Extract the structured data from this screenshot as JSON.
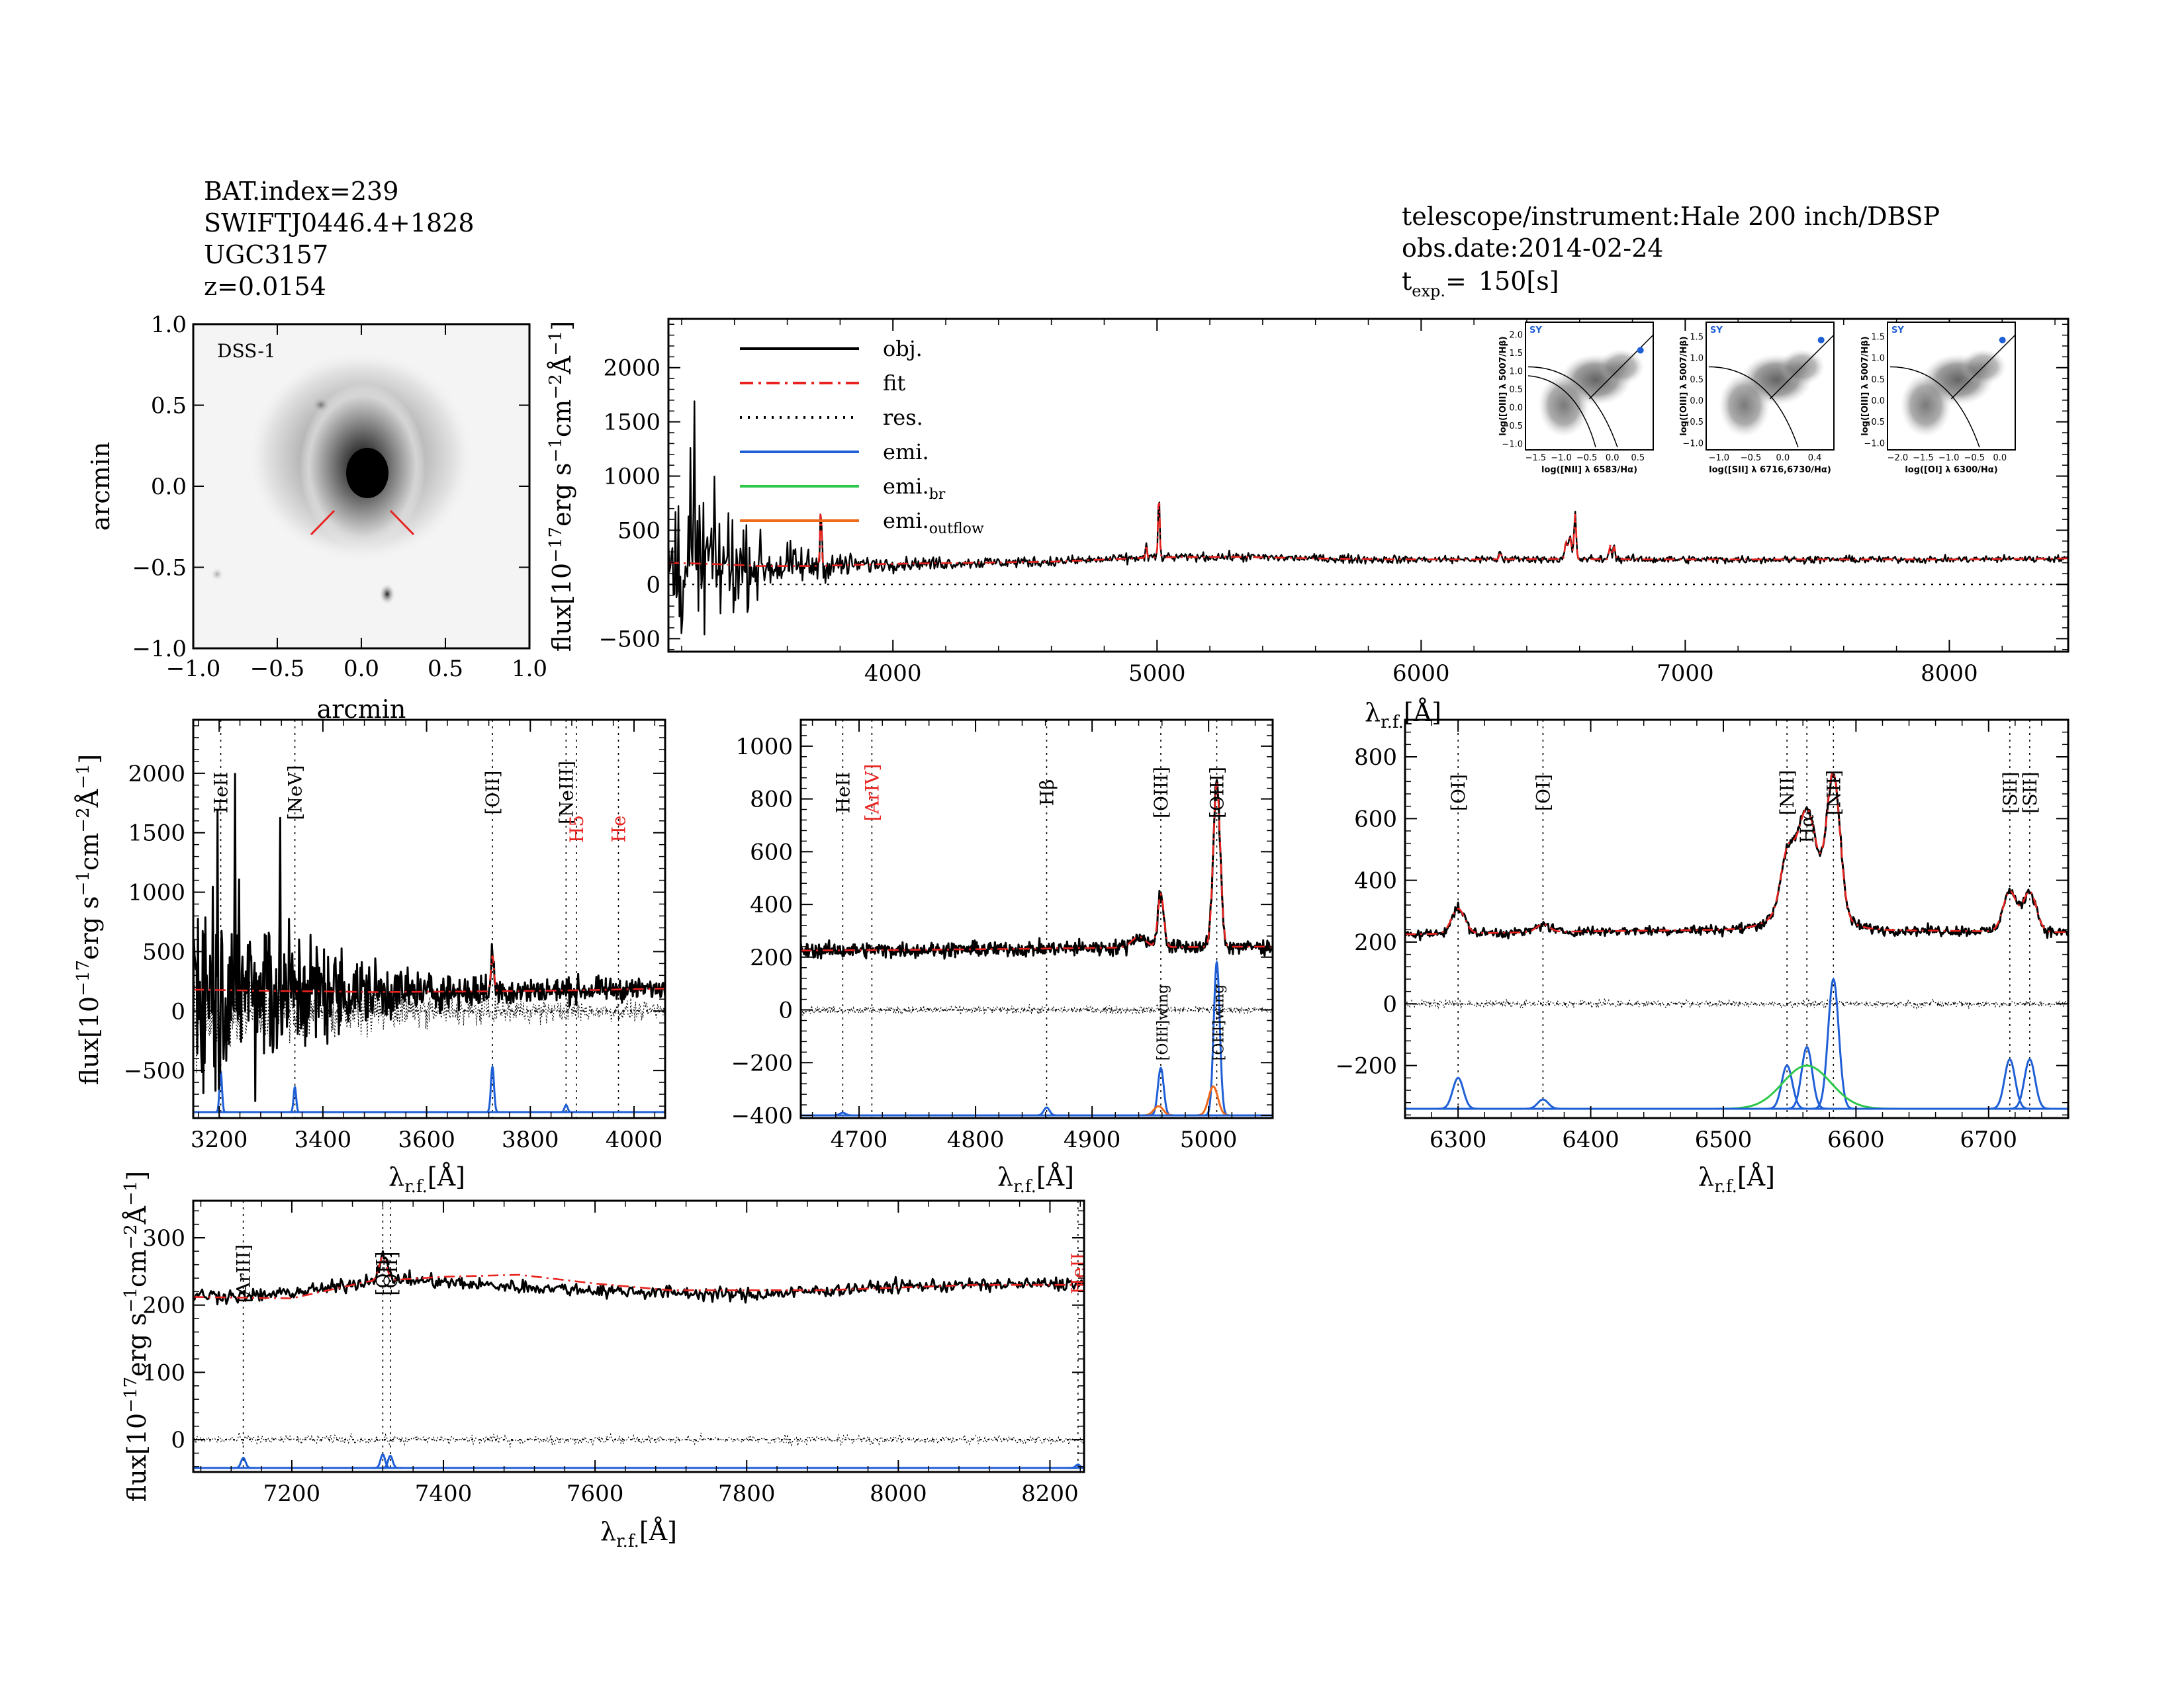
{
  "header": {
    "left": [
      "BAT.index=239",
      "SWIFTJ0446.4+1828",
      "UGC3157",
      "z=0.0154"
    ],
    "right": [
      "telescope/instrument:Hale 200 inch/DBSP",
      "obs.date:2014-02-24",
      "150[s]"
    ],
    "texp_label": "t",
    "texp_sub": "exp.",
    "texp_eq": "="
  },
  "colors": {
    "obj": "#000000",
    "fit": "#e8231f",
    "res": "#000000",
    "emi": "#1f5fd6",
    "emi_br": "#2ec84a",
    "emi_outflow": "#f06a1c",
    "red_label": "#e8231f",
    "bpt_sy": "#1f5fd6"
  },
  "image": {
    "label": "DSS-1",
    "xlabel": "arcmin",
    "ylabel": "arcmin",
    "xlim": [
      -1.0,
      1.0
    ],
    "ylim": [
      -1.0,
      1.0
    ],
    "xticks": [
      "-1.0",
      "-0.5",
      "0.0",
      "0.5",
      "1.0"
    ],
    "yticks": [
      "-1.0",
      "-0.5",
      "0.0",
      "0.5",
      "1.0"
    ],
    "marker_color": "#e8231f"
  },
  "labels": {
    "ylabel": "flux[10-17erg s-1cm-2Å-1]",
    "xlabel": "λr.f.[Å]"
  },
  "legend": [
    {
      "label": "obj.",
      "key": "obj",
      "style": "solid"
    },
    {
      "label": "fit",
      "key": "fit",
      "style": "dashdot"
    },
    {
      "label": "res.",
      "key": "res",
      "style": "dotted"
    },
    {
      "label": "emi.",
      "key": "emi",
      "style": "solid"
    },
    {
      "label": "emi.br",
      "key": "emi_br",
      "style": "solid"
    },
    {
      "label": "emi.outflow",
      "key": "emi_outflow",
      "style": "solid"
    }
  ],
  "bpt": [
    {
      "xlabel": "log([NII] λ 6583/Hα)",
      "ylabel": "log([OIII] λ 5007/Hβ)",
      "xticks": [
        "-1.5",
        "-1.0",
        "-0.5",
        "0.0",
        "0.5"
      ],
      "yticks": [
        "-1.0",
        "-0.5",
        "0.0",
        "0.5",
        "1.0",
        "1.5",
        "2.0"
      ],
      "tag": "SY"
    },
    {
      "xlabel": "log([SII] λ 6716,6730/Hα)",
      "ylabel": "log([OIII] λ 5007/Hβ)",
      "xticks": [
        "-1.0",
        "-0.5",
        "0.0",
        "0.4"
      ],
      "yticks": [
        "-1.0",
        "-0.5",
        "0.0",
        "0.5",
        "1.0",
        "1.5"
      ],
      "tag": "SY"
    },
    {
      "xlabel": "log([OI] λ 6300/Hα)",
      "ylabel": "log([OIII] λ 5007/Hβ)",
      "xticks": [
        "-2.0",
        "-1.5",
        "-1.0",
        "-0.5",
        "0.0"
      ],
      "yticks": [
        "-1.0",
        "-0.5",
        "0.0",
        "0.5",
        "1.0",
        "1.5"
      ],
      "tag": "SY"
    }
  ],
  "chart_data": [
    {
      "id": "main",
      "type": "line",
      "title": "",
      "xlim": [
        3150,
        8450
      ],
      "ylim": [
        -620,
        2450
      ],
      "xticks": [
        4000,
        5000,
        6000,
        7000,
        8000
      ],
      "yticks": [
        -500,
        0,
        500,
        1000,
        1500,
        2000
      ],
      "continuum": [
        [
          3150,
          200
        ],
        [
          3300,
          190
        ],
        [
          3500,
          170
        ],
        [
          3700,
          170
        ],
        [
          4000,
          190
        ],
        [
          4300,
          200
        ],
        [
          4600,
          210
        ],
        [
          4800,
          230
        ],
        [
          5000,
          250
        ],
        [
          5300,
          255
        ],
        [
          5600,
          240
        ],
        [
          5900,
          230
        ],
        [
          6200,
          230
        ],
        [
          6500,
          235
        ],
        [
          7000,
          230
        ],
        [
          7500,
          230
        ],
        [
          8000,
          230
        ],
        [
          8450,
          240
        ]
      ],
      "emission": [
        [
          3727,
          550,
          3
        ],
        [
          4959,
          120,
          3
        ],
        [
          5007,
          600,
          3
        ],
        [
          6300,
          70,
          4
        ],
        [
          6548,
          150,
          4
        ],
        [
          6563,
          200,
          6
        ],
        [
          6583,
          420,
          4
        ],
        [
          6716,
          130,
          4
        ],
        [
          6731,
          120,
          4
        ]
      ],
      "noise": [
        [
          3150,
          380
        ],
        [
          3300,
          300
        ],
        [
          3500,
          120
        ],
        [
          3700,
          70
        ],
        [
          4000,
          30
        ],
        [
          5000,
          20
        ],
        [
          8450,
          15
        ]
      ],
      "lines": [],
      "emi_components": [],
      "emi_baseline": 0
    },
    {
      "id": "p1",
      "type": "line",
      "xlim": [
        3150,
        4060
      ],
      "ylim": [
        -900,
        2450
      ],
      "xticks": [
        3200,
        3400,
        3600,
        3800,
        4000
      ],
      "yticks": [
        -500,
        0,
        500,
        1000,
        1500,
        2000
      ],
      "continuum": [
        [
          3150,
          180
        ],
        [
          3300,
          170
        ],
        [
          3500,
          160
        ],
        [
          3700,
          165
        ],
        [
          3900,
          175
        ],
        [
          4060,
          190
        ]
      ],
      "emission": [
        [
          3727,
          300,
          3
        ]
      ],
      "noise": [
        [
          3150,
          420
        ],
        [
          3300,
          320
        ],
        [
          3450,
          160
        ],
        [
          3600,
          80
        ],
        [
          3800,
          55
        ],
        [
          4060,
          40
        ]
      ],
      "res_noise": [
        [
          3150,
          320
        ],
        [
          3400,
          160
        ],
        [
          3700,
          90
        ],
        [
          4060,
          60
        ]
      ],
      "lines": [
        {
          "name": "HeII",
          "wave": 3203,
          "color": "black",
          "stack": 0
        },
        {
          "name": "[NeV]",
          "wave": 3346,
          "color": "black",
          "stack": 0
        },
        {
          "name": "[OII]",
          "wave": 3727,
          "color": "black",
          "stack": 0
        },
        {
          "name": "[NeIII]",
          "wave": 3869,
          "color": "black",
          "stack": 0
        },
        {
          "name": "H5",
          "wave": 3889,
          "color": "red",
          "stack": 1
        },
        {
          "name": "He",
          "wave": 3970,
          "color": "red",
          "stack": 1
        }
      ],
      "emi_components": [
        {
          "comp": "emi",
          "center": 3203,
          "amp": 340,
          "sigma": 2.5
        },
        {
          "comp": "emi",
          "center": 3346,
          "amp": 210,
          "sigma": 2.5
        },
        {
          "comp": "emi",
          "center": 3727,
          "amp": 380,
          "sigma": 3
        },
        {
          "comp": "emi",
          "center": 3869,
          "amp": 60,
          "sigma": 3
        }
      ],
      "emi_baseline": -850
    },
    {
      "id": "p2",
      "type": "line",
      "xlim": [
        4650,
        5055
      ],
      "ylim": [
        -410,
        1100
      ],
      "xticks": [
        4700,
        4800,
        4900,
        5000
      ],
      "yticks": [
        -400,
        -200,
        0,
        200,
        400,
        600,
        800,
        1000
      ],
      "continuum": [
        [
          4650,
          225
        ],
        [
          4750,
          228
        ],
        [
          4850,
          232
        ],
        [
          4950,
          238
        ],
        [
          5055,
          240
        ]
      ],
      "emission": [
        [
          4959,
          200,
          2.6
        ],
        [
          5007,
          620,
          3
        ],
        [
          4940,
          40,
          6
        ]
      ],
      "noise": [
        [
          4650,
          14
        ],
        [
          5055,
          14
        ]
      ],
      "res_noise": [
        [
          4650,
          12
        ],
        [
          5055,
          12
        ]
      ],
      "lines": [
        {
          "name": "HeII",
          "wave": 4686,
          "color": "black",
          "stack": 0
        },
        {
          "name": "[ArIV]",
          "wave": 4711,
          "color": "red",
          "stack": 0
        },
        {
          "name": "Hβ",
          "wave": 4861,
          "color": "black",
          "stack": 0
        },
        {
          "name": "[OIII]",
          "wave": 4959,
          "color": "black",
          "stack": 0
        },
        {
          "name": "[OIII]",
          "wave": 5007,
          "color": "black",
          "stack": 0
        },
        {
          "name": "[OIII]wing",
          "wave": 4959,
          "color": "black",
          "stack": 2
        },
        {
          "name": "[OIII]wing",
          "wave": 5007,
          "color": "black",
          "stack": 2
        }
      ],
      "emi_components": [
        {
          "comp": "emi",
          "center": 4686,
          "amp": 10,
          "sigma": 2.5
        },
        {
          "comp": "emi",
          "center": 4861,
          "amp": 30,
          "sigma": 2.5
        },
        {
          "comp": "emi",
          "center": 4959,
          "amp": 180,
          "sigma": 2.5
        },
        {
          "comp": "emi",
          "center": 5007,
          "amp": 580,
          "sigma": 2.6
        },
        {
          "comp": "emi_outflow",
          "center": 4957,
          "amp": 35,
          "sigma": 4
        },
        {
          "comp": "emi_outflow",
          "center": 5004,
          "amp": 110,
          "sigma": 4
        }
      ],
      "emi_baseline": -400
    },
    {
      "id": "p3",
      "type": "line",
      "xlim": [
        6260,
        6760
      ],
      "ylim": [
        -370,
        920
      ],
      "xticks": [
        6300,
        6400,
        6500,
        6600,
        6700
      ],
      "yticks": [
        -200,
        0,
        200,
        400,
        600,
        800
      ],
      "continuum": [
        [
          6260,
          225
        ],
        [
          6400,
          235
        ],
        [
          6500,
          240
        ],
        [
          6600,
          240
        ],
        [
          6760,
          232
        ]
      ],
      "emission": [
        [
          6300,
          80,
          5
        ],
        [
          6364,
          25,
          5
        ],
        [
          6548,
          170,
          5
        ],
        [
          6563,
          300,
          7
        ],
        [
          6583,
          450,
          5
        ],
        [
          6716,
          130,
          5
        ],
        [
          6731,
          130,
          5
        ],
        [
          6563,
          90,
          20
        ]
      ],
      "noise": [
        [
          6260,
          8
        ],
        [
          6760,
          8
        ]
      ],
      "res_noise": [
        [
          6260,
          10
        ],
        [
          6760,
          10
        ]
      ],
      "lines": [
        {
          "name": "[OI]",
          "wave": 6300,
          "color": "black",
          "stack": 0
        },
        {
          "name": "[OI]",
          "wave": 6364,
          "color": "black",
          "stack": 0
        },
        {
          "name": "[NII]",
          "wave": 6548,
          "color": "black",
          "stack": 0
        },
        {
          "name": "Hα",
          "wave": 6563,
          "color": "black",
          "stack": 1
        },
        {
          "name": "[NII]",
          "wave": 6583,
          "color": "black",
          "stack": 0
        },
        {
          "name": "[SII]",
          "wave": 6716,
          "color": "black",
          "stack": 0
        },
        {
          "name": "[SII]",
          "wave": 6731,
          "color": "black",
          "stack": 0
        }
      ],
      "emi_components": [
        {
          "comp": "emi",
          "center": 6300,
          "amp": 100,
          "sigma": 4
        },
        {
          "comp": "emi",
          "center": 6364,
          "amp": 30,
          "sigma": 4
        },
        {
          "comp": "emi",
          "center": 6548,
          "amp": 140,
          "sigma": 4
        },
        {
          "comp": "emi",
          "center": 6563,
          "amp": 200,
          "sigma": 4
        },
        {
          "comp": "emi",
          "center": 6583,
          "amp": 420,
          "sigma": 4
        },
        {
          "comp": "emi",
          "center": 6716,
          "amp": 160,
          "sigma": 4
        },
        {
          "comp": "emi",
          "center": 6731,
          "amp": 160,
          "sigma": 4
        },
        {
          "comp": "emi_br",
          "center": 6563,
          "amp": 140,
          "sigma": 18
        }
      ],
      "emi_baseline": -340
    },
    {
      "id": "p4",
      "type": "line",
      "xlim": [
        7070,
        8245
      ],
      "ylim": [
        -48,
        355
      ],
      "xticks": [
        7200,
        7400,
        7600,
        7800,
        8000,
        8200
      ],
      "yticks": [
        0,
        100,
        200,
        300
      ],
      "continuum": [
        [
          7070,
          215
        ],
        [
          7150,
          213
        ],
        [
          7250,
          225
        ],
        [
          7320,
          240
        ],
        [
          7450,
          230
        ],
        [
          7600,
          222
        ],
        [
          7800,
          215
        ],
        [
          8000,
          228
        ],
        [
          8245,
          232
        ]
      ],
      "fit_curve": [
        [
          7070,
          212
        ],
        [
          7200,
          210
        ],
        [
          7300,
          235
        ],
        [
          7400,
          242
        ],
        [
          7500,
          245
        ],
        [
          7600,
          232
        ],
        [
          7700,
          222
        ],
        [
          7900,
          222
        ],
        [
          8100,
          230
        ],
        [
          8245,
          230
        ]
      ],
      "emission": [
        [
          7320,
          35,
          5
        ]
      ],
      "noise": [
        [
          7070,
          5
        ],
        [
          8245,
          5
        ]
      ],
      "res_noise": [
        [
          7070,
          6
        ],
        [
          8245,
          6
        ]
      ],
      "lines": [
        {
          "name": "[ArIII]",
          "wave": 7136,
          "color": "black",
          "stack": 0
        },
        {
          "name": "[OII]",
          "wave": 7320,
          "color": "black",
          "stack": 0
        },
        {
          "name": "[OII]",
          "wave": 7330,
          "color": "black",
          "stack": 0
        },
        {
          "name": "HeII",
          "wave": 8237,
          "color": "red",
          "stack": 0
        }
      ],
      "emi_components": [
        {
          "comp": "emi",
          "center": 7136,
          "amp": 15,
          "sigma": 3
        },
        {
          "comp": "emi",
          "center": 7320,
          "amp": 20,
          "sigma": 3
        },
        {
          "comp": "emi",
          "center": 7330,
          "amp": 18,
          "sigma": 3
        },
        {
          "comp": "emi",
          "center": 8237,
          "amp": 5,
          "sigma": 3
        }
      ],
      "emi_baseline": -42
    }
  ]
}
